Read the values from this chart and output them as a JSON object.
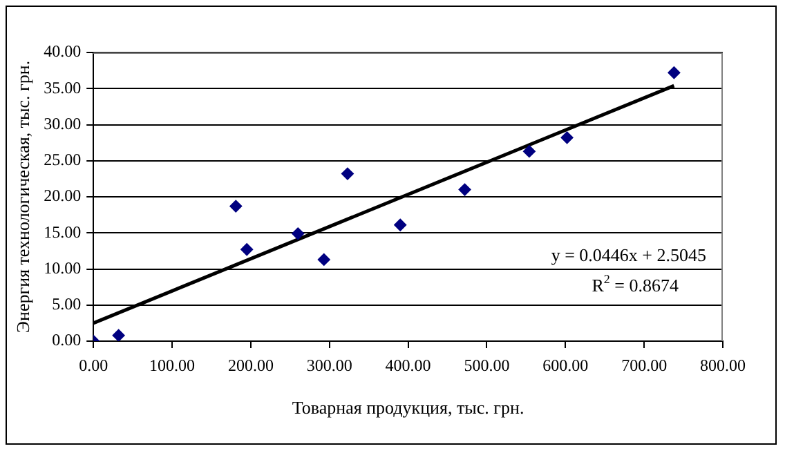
{
  "chart_data": {
    "type": "scatter",
    "xlabel": "Товарная продукция, тыс. грн.",
    "ylabel": "Энергия технологическая, тыс. грн.",
    "xlim": [
      0,
      800
    ],
    "ylim": [
      0,
      40
    ],
    "xticks": [
      {
        "value": 0,
        "label": "0.00"
      },
      {
        "value": 100,
        "label": "100.00"
      },
      {
        "value": 200,
        "label": "200.00"
      },
      {
        "value": 300,
        "label": "300.00"
      },
      {
        "value": 400,
        "label": "400.00"
      },
      {
        "value": 500,
        "label": "500.00"
      },
      {
        "value": 600,
        "label": "600.00"
      },
      {
        "value": 700,
        "label": "700.00"
      },
      {
        "value": 800,
        "label": "800.00"
      }
    ],
    "yticks": [
      {
        "value": 0,
        "label": "0.00"
      },
      {
        "value": 5,
        "label": "5.00"
      },
      {
        "value": 10,
        "label": "10.00"
      },
      {
        "value": 15,
        "label": "15.00"
      },
      {
        "value": 20,
        "label": "20.00"
      },
      {
        "value": 25,
        "label": "25.00"
      },
      {
        "value": 30,
        "label": "30.00"
      },
      {
        "value": 35,
        "label": "35.00"
      },
      {
        "value": 40,
        "label": "40.00"
      }
    ],
    "grid": "y",
    "legend": false,
    "series": [
      {
        "color": "#000080",
        "marker": "diamond",
        "x": [
          0,
          32,
          181,
          195,
          260,
          293,
          323,
          390,
          472,
          554,
          602,
          738
        ],
        "values": [
          0,
          0.8,
          18.7,
          12.7,
          14.9,
          11.3,
          23.2,
          16.1,
          21.0,
          26.3,
          28.2,
          37.2
        ]
      },
      {
        "type": "line",
        "color": "#000000",
        "marker": "none",
        "x": [
          0,
          738
        ],
        "values": [
          2.5,
          35.4
        ]
      }
    ],
    "annotations": [
      "y = 0.0446x + 2.5045",
      "R$^{2}$ = 0.8674"
    ]
  }
}
